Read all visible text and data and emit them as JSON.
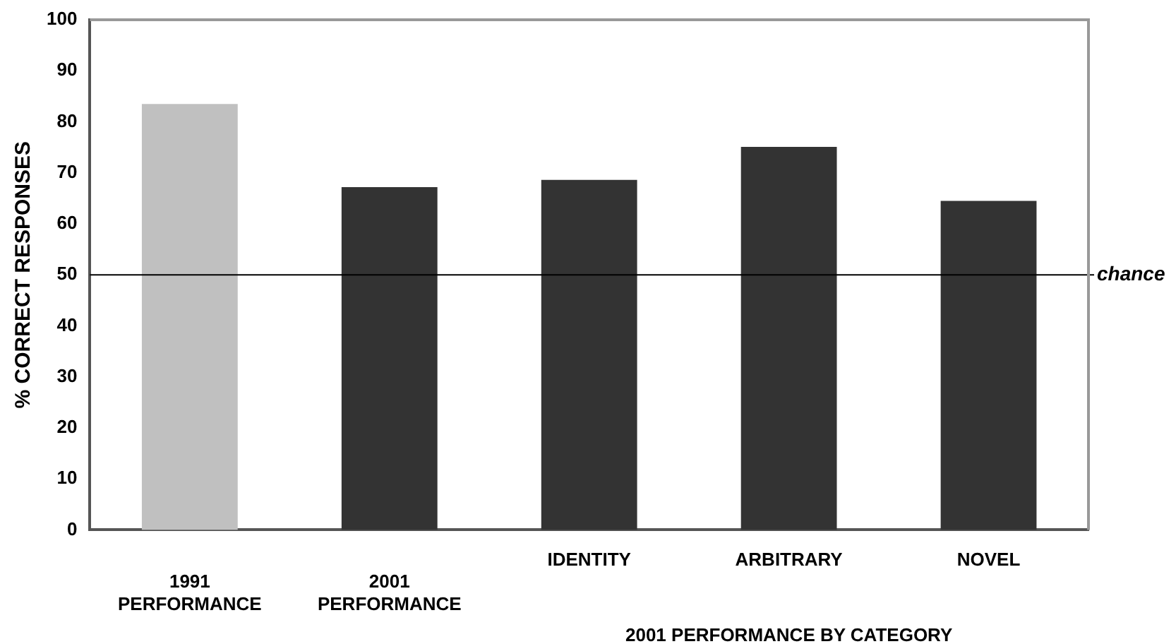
{
  "chart_data": {
    "type": "bar",
    "ylabel": "% CORRECT RESPONSES",
    "categories": [
      "1991 PERFORMANCE",
      "2001 PERFORMANCE",
      "IDENTITY",
      "ARBITRARY",
      "NOVEL"
    ],
    "values": [
      83.5,
      67.2,
      68.6,
      75.1,
      64.5
    ],
    "colors": [
      "#c0c0c0",
      "#333333",
      "#333333",
      "#333333",
      "#333333"
    ],
    "ylim": [
      0,
      100
    ],
    "yticks": [
      0,
      10,
      20,
      30,
      40,
      50,
      60,
      70,
      80,
      90,
      100
    ],
    "grid": false,
    "legend": false,
    "ref_lines": [
      {
        "axis": "y",
        "value": 50,
        "label": "chance",
        "color": "#000000"
      }
    ],
    "annotations": [
      "2001 PERFORMANCE BY CATEGORY"
    ]
  }
}
